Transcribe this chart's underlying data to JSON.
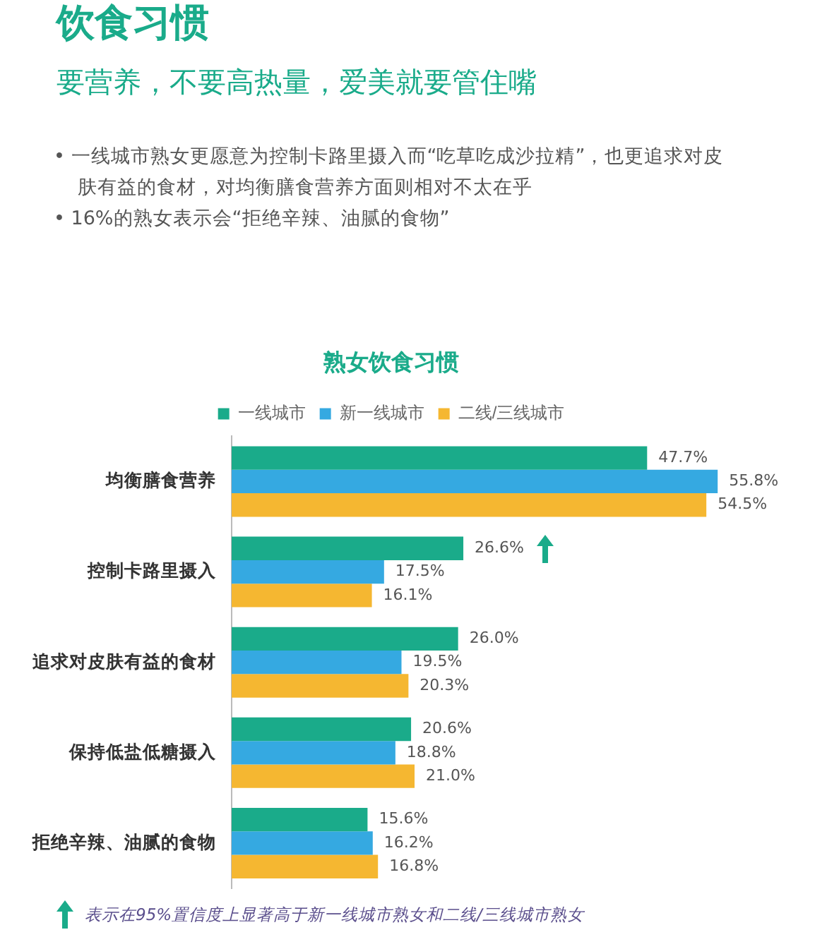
{
  "chart_data": {
    "type": "bar",
    "orientation": "horizontal",
    "title": "饮食习惯",
    "subtitle": "要营养，不要高热量，爱美就要管住嘴",
    "annotations": [
      "• 一线城市熟女更愿意为控制卡路里摄入而“吃草吃成沙拉精”，也更追求对皮肤有益的食材，对均衡膳食营养方面则相对不太在乎",
      "• 16%的熟女表示会“拒绝辛辣、油腻的食物”",
      "熟女饮食习惯",
      "表示在95%置信度上显著高于新一线城市熟女和二线/三线城市熟女"
    ],
    "categories": [
      "均衡膳食营养",
      "控制卡路里摄入",
      "追求对皮肤有益的食材",
      "保持低盐低糖摄入",
      "拒绝辛辣、油腻的食物"
    ],
    "series": [
      {
        "name": "一线城市",
        "color": "#1aab8a",
        "values": [
          47.7,
          26.6,
          26.0,
          20.6,
          15.6
        ],
        "value_labels": [
          "47.7%",
          "26.6%",
          "26.0%",
          "20.6%",
          "15.6%"
        ]
      },
      {
        "name": "新一线城市",
        "color": "#35a9e1",
        "values": [
          55.8,
          17.5,
          19.5,
          18.8,
          16.2
        ],
        "value_labels": [
          "55.8%",
          "17.5%",
          "19.5%",
          "18.8%",
          "16.2%"
        ]
      },
      {
        "name": "二线/三线城市",
        "color": "#f5b731",
        "values": [
          54.5,
          16.1,
          20.3,
          21.0,
          16.8
        ],
        "value_labels": [
          "54.5%",
          "16.1%",
          "20.3%",
          "21.0%",
          "16.8%"
        ]
      }
    ],
    "legend": "top"
  }
}
